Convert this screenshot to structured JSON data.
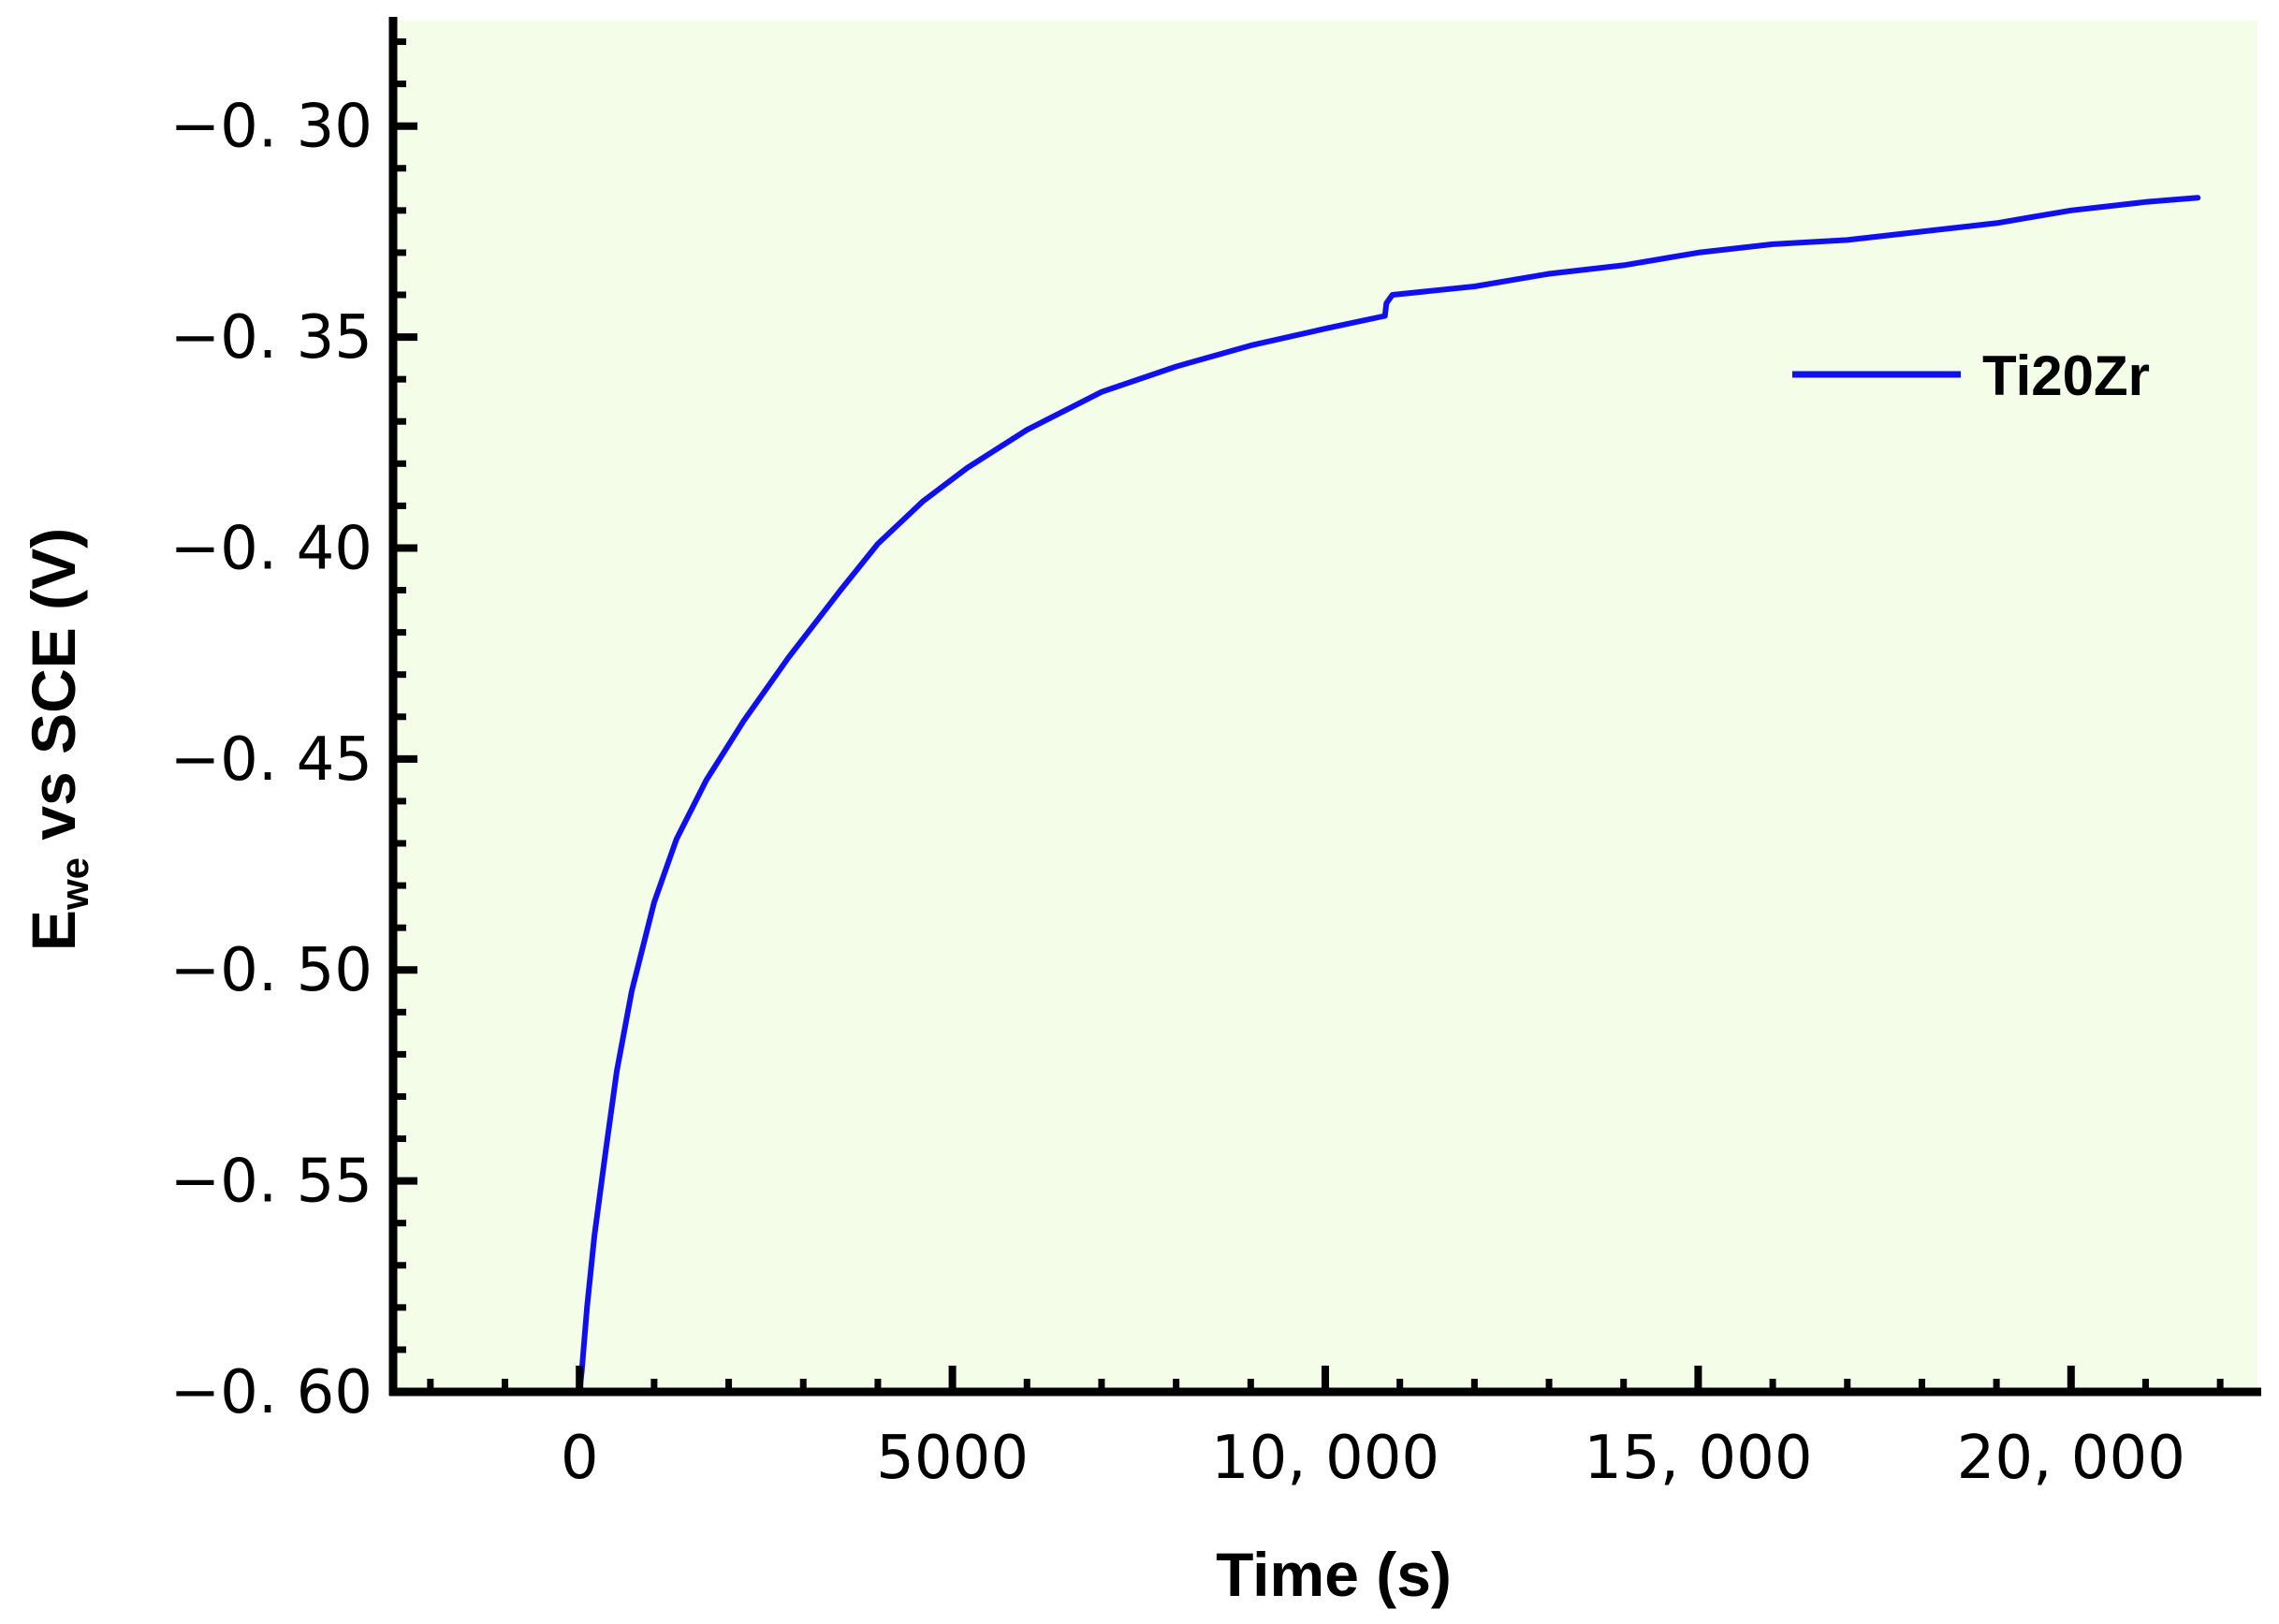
{
  "chart_data": {
    "type": "line",
    "title": "",
    "xlabel": "Time (s)",
    "ylabel": {
      "main": "E",
      "subscript": "we",
      "rest": " vs SCE (V)"
    },
    "xlim": [
      -2500,
      22500
    ],
    "ylim": [
      -0.6,
      -0.275
    ],
    "x_ticks": [
      0,
      5000,
      10000,
      15000,
      20000
    ],
    "x_tick_labels": [
      "0",
      "5000",
      "10, 000",
      "15, 000",
      "20, 000"
    ],
    "y_ticks": [
      -0.6,
      -0.55,
      -0.5,
      -0.45,
      -0.4,
      -0.35,
      -0.3
    ],
    "y_tick_labels": [
      "−0. 60",
      "−0. 55",
      "−0. 50",
      "−0. 45",
      "−0. 40",
      "−0. 35",
      "−0. 30"
    ],
    "grid": false,
    "legend_position": "top-right",
    "plot_background": "#f4fde8",
    "series": [
      {
        "name": "Ti20Zr",
        "color": "#1010ee",
        "points": [
          [
            0,
            -0.6
          ],
          [
            30,
            -0.595
          ],
          [
            100,
            -0.58
          ],
          [
            200,
            -0.563
          ],
          [
            350,
            -0.543
          ],
          [
            500,
            -0.524
          ],
          [
            700,
            -0.505
          ],
          [
            1000,
            -0.484
          ],
          [
            1300,
            -0.469
          ],
          [
            1700,
            -0.455
          ],
          [
            2200,
            -0.441
          ],
          [
            2800,
            -0.426
          ],
          [
            3500,
            -0.41
          ],
          [
            4000,
            -0.399
          ],
          [
            4600,
            -0.389
          ],
          [
            5200,
            -0.381
          ],
          [
            6000,
            -0.372
          ],
          [
            7000,
            -0.363
          ],
          [
            8000,
            -0.357
          ],
          [
            9000,
            -0.352
          ],
          [
            10000,
            -0.348
          ],
          [
            10800,
            -0.345
          ],
          [
            10820,
            -0.342
          ],
          [
            10900,
            -0.34
          ],
          [
            12000,
            -0.338
          ],
          [
            13000,
            -0.335
          ],
          [
            14000,
            -0.333
          ],
          [
            15000,
            -0.33
          ],
          [
            16000,
            -0.328
          ],
          [
            17000,
            -0.327
          ],
          [
            18000,
            -0.325
          ],
          [
            19000,
            -0.323
          ],
          [
            20000,
            -0.32
          ],
          [
            21000,
            -0.318
          ],
          [
            21700,
            -0.317
          ]
        ]
      }
    ]
  }
}
